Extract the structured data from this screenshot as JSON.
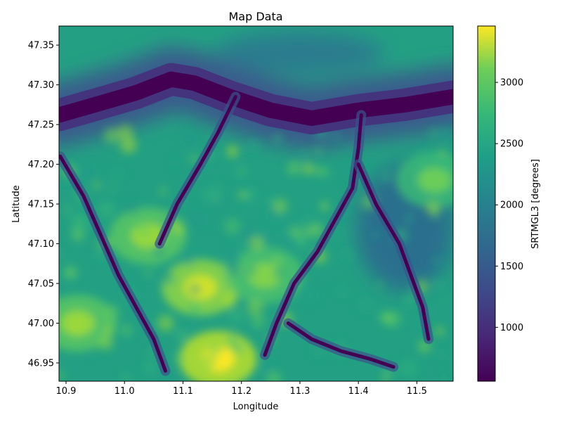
{
  "chart_data": {
    "type": "heatmap",
    "title": "Map Data",
    "xlabel": "Longitude",
    "ylabel": "Latitude",
    "xlim": [
      10.888,
      11.562
    ],
    "ylim": [
      46.927,
      47.374
    ],
    "xticks": [
      {
        "value": 10.9,
        "label": "10.9"
      },
      {
        "value": 11.0,
        "label": "11.0"
      },
      {
        "value": 11.1,
        "label": "11.1"
      },
      {
        "value": 11.2,
        "label": "11.2"
      },
      {
        "value": 11.3,
        "label": "11.3"
      },
      {
        "value": 11.4,
        "label": "11.4"
      },
      {
        "value": 11.5,
        "label": "11.5"
      }
    ],
    "yticks": [
      {
        "value": 46.95,
        "label": "46.95"
      },
      {
        "value": 47.0,
        "label": "47.00"
      },
      {
        "value": 47.05,
        "label": "47.05"
      },
      {
        "value": 47.1,
        "label": "47.10"
      },
      {
        "value": 47.15,
        "label": "47.15"
      },
      {
        "value": 47.2,
        "label": "47.20"
      },
      {
        "value": 47.25,
        "label": "47.25"
      },
      {
        "value": 47.3,
        "label": "47.30"
      },
      {
        "value": 47.35,
        "label": "47.35"
      }
    ],
    "colorbar": {
      "label": "SRTMGL3 [degrees]",
      "colormap": "viridis",
      "range": [
        560,
        3460
      ],
      "ticks": [
        {
          "value": 1000,
          "label": "1000"
        },
        {
          "value": 1500,
          "label": "1500"
        },
        {
          "value": 2000,
          "label": "2000"
        },
        {
          "value": 2500,
          "label": "2500"
        },
        {
          "value": 3000,
          "label": "3000"
        }
      ]
    },
    "valleys": [
      {
        "name": "main-valley",
        "lonlat": [
          [
            10.888,
            47.262
          ],
          [
            10.95,
            47.275
          ],
          [
            11.02,
            47.29
          ],
          [
            11.08,
            47.307
          ],
          [
            11.12,
            47.302
          ],
          [
            11.18,
            47.285
          ],
          [
            11.25,
            47.268
          ],
          [
            11.32,
            47.258
          ],
          [
            11.4,
            47.268
          ],
          [
            11.48,
            47.275
          ],
          [
            11.562,
            47.285
          ]
        ]
      },
      {
        "name": "side-valley-1",
        "lonlat": [
          [
            11.405,
            47.262
          ],
          [
            11.4,
            47.22
          ],
          [
            11.39,
            47.17
          ],
          [
            11.36,
            47.13
          ],
          [
            11.33,
            47.09
          ],
          [
            11.29,
            47.05
          ],
          [
            11.26,
            47.0
          ],
          [
            11.24,
            46.96
          ]
        ]
      },
      {
        "name": "side-valley-2",
        "lonlat": [
          [
            11.4,
            47.2
          ],
          [
            11.43,
            47.15
          ],
          [
            11.47,
            47.1
          ],
          [
            11.49,
            47.06
          ],
          [
            11.51,
            47.02
          ],
          [
            11.52,
            46.98
          ]
        ]
      },
      {
        "name": "side-valley-3",
        "lonlat": [
          [
            11.19,
            47.285
          ],
          [
            11.16,
            47.24
          ],
          [
            11.13,
            47.2
          ],
          [
            11.09,
            47.15
          ],
          [
            11.06,
            47.1
          ]
        ]
      },
      {
        "name": "side-valley-4",
        "lonlat": [
          [
            10.89,
            47.21
          ],
          [
            10.93,
            47.16
          ],
          [
            10.96,
            47.11
          ],
          [
            10.99,
            47.06
          ],
          [
            11.02,
            47.02
          ],
          [
            11.05,
            46.98
          ],
          [
            11.07,
            46.94
          ]
        ]
      },
      {
        "name": "side-valley-5",
        "lonlat": [
          [
            11.28,
            47.0
          ],
          [
            11.32,
            46.98
          ],
          [
            11.37,
            46.965
          ],
          [
            11.42,
            46.955
          ],
          [
            11.46,
            46.945
          ]
        ]
      }
    ],
    "peaks": [
      {
        "name": "peak-1",
        "lon": 11.16,
        "lat": 46.955,
        "value": 3450
      },
      {
        "name": "peak-2",
        "lon": 11.13,
        "lat": 47.045,
        "value": 3250
      },
      {
        "name": "peak-3",
        "lon": 10.92,
        "lat": 47.0,
        "value": 3000
      },
      {
        "name": "peak-4",
        "lon": 11.04,
        "lat": 47.11,
        "value": 3000
      },
      {
        "name": "peak-5",
        "lon": 11.24,
        "lat": 47.06,
        "value": 2900
      },
      {
        "name": "peak-6",
        "lon": 11.53,
        "lat": 47.18,
        "value": 2800
      }
    ]
  }
}
